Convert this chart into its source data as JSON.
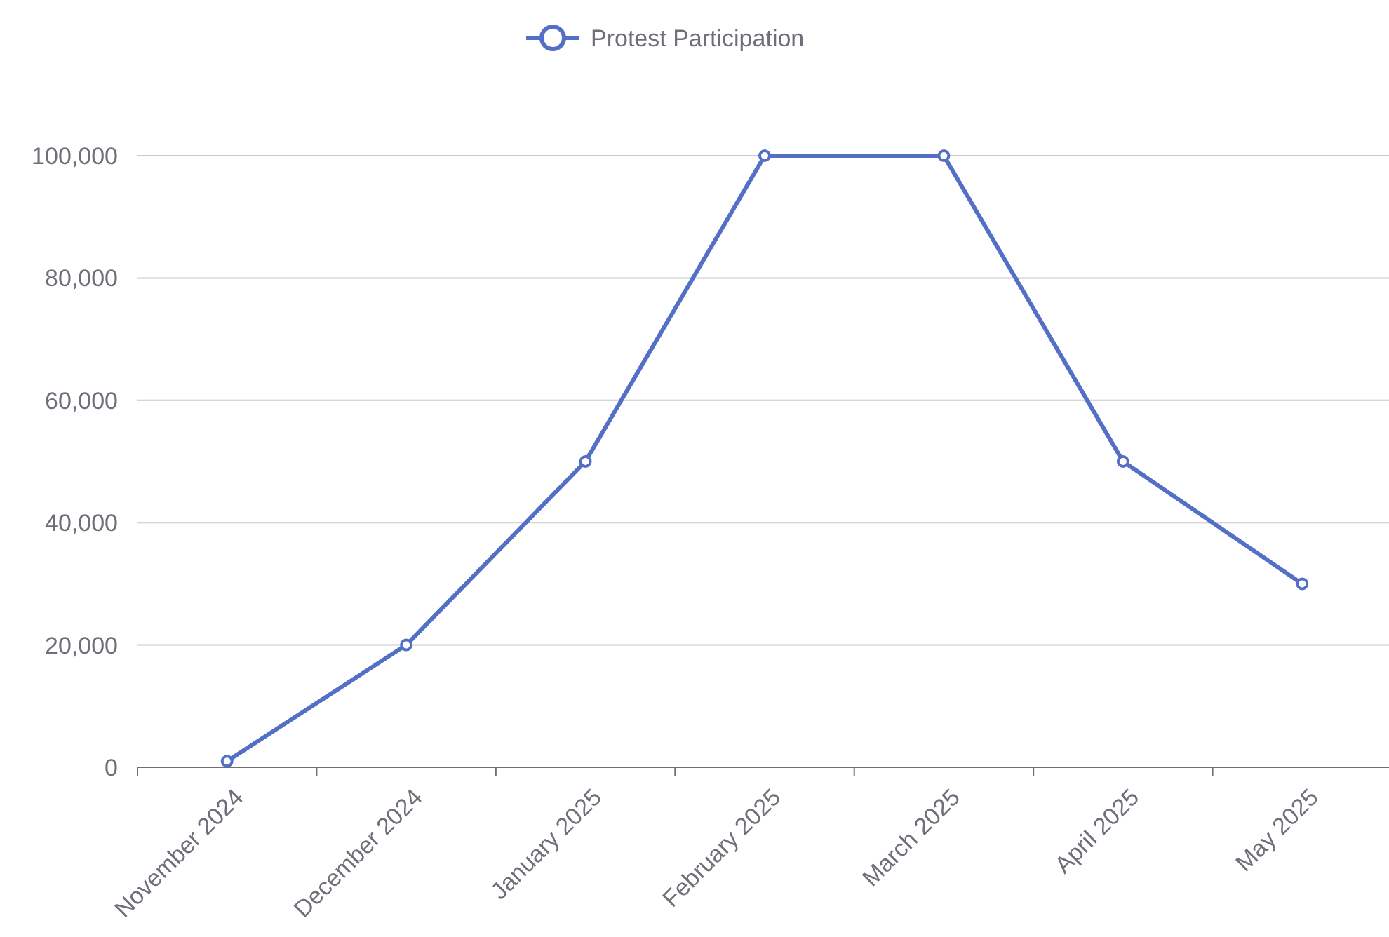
{
  "chart_data": {
    "type": "line",
    "categories": [
      "November 2024",
      "December 2024",
      "January 2025",
      "February 2025",
      "March 2025",
      "April 2025",
      "May 2025"
    ],
    "series": [
      {
        "name": "Protest Participation",
        "color": "#5470c6",
        "values": [
          1000,
          20000,
          50000,
          100000,
          100000,
          50000,
          30000
        ]
      }
    ],
    "ylim": [
      0,
      100000
    ],
    "yticks": [
      {
        "value": 0,
        "label": "0"
      },
      {
        "value": 20000,
        "label": "20,000"
      },
      {
        "value": 40000,
        "label": "40,000"
      },
      {
        "value": 60000,
        "label": "60,000"
      },
      {
        "value": 80000,
        "label": "80,000"
      },
      {
        "value": 100000,
        "label": "100,000"
      }
    ],
    "grid": "y",
    "legend": "top",
    "marker": "circle",
    "line_style": "solid"
  }
}
